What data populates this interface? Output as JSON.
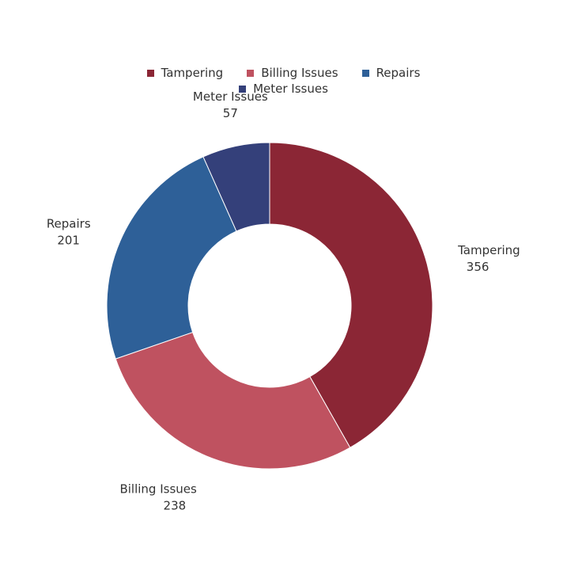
{
  "chart_data": {
    "type": "pie",
    "variant": "donut",
    "title": "",
    "categories": [
      "Tampering",
      "Billing Issues",
      "Repairs",
      "Meter Issues"
    ],
    "values": [
      356,
      238,
      201,
      57
    ],
    "colors": [
      "#8b2635",
      "#bf5260",
      "#2e6098",
      "#34407a"
    ],
    "legend": {
      "placement": "top-center",
      "rows": [
        [
          "Tampering",
          "Billing Issues",
          "Repairs"
        ],
        [
          "Meter Issues"
        ]
      ]
    }
  }
}
